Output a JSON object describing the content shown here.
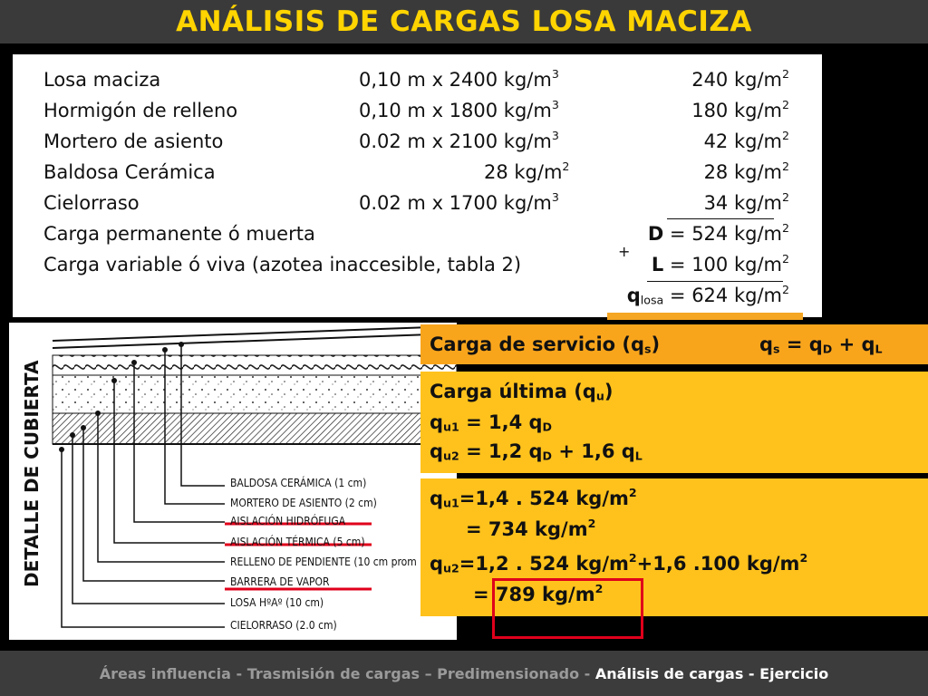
{
  "title": "ANÁLISIS DE CARGAS LOSA MACIZA",
  "loads": [
    {
      "label": "Losa maciza",
      "calc": "0,10 m x 2400 kg/m",
      "calc_sup": "3",
      "result": "240 kg/m",
      "result_sup": "2"
    },
    {
      "label": "Hormigón de relleno",
      "calc": "0,10 m x 1800 kg/m",
      "calc_sup": "3",
      "result": "180 kg/m",
      "result_sup": "2"
    },
    {
      "label": "Mortero de asiento",
      "calc": "0.02 m x 2100  kg/m",
      "calc_sup": "3",
      "result": "42 kg/m",
      "result_sup": "2"
    },
    {
      "label": "Baldosa Cerámica",
      "calc": "28   kg/m",
      "calc_sup": "2",
      "result": "28 kg/m",
      "result_sup": "2"
    },
    {
      "label": "Cielorraso",
      "calc": "0.02 m x 1700  kg/m",
      "calc_sup": "3",
      "result": "34 kg/m",
      "result_sup": "2"
    },
    {
      "label": "Carga permanente ó muerta",
      "result_prefix": "D",
      "result": " = 524 kg/m",
      "result_sup": "2"
    },
    {
      "label": "Carga variable ó viva (azotea inaccesible, tabla 2)",
      "result_prefix": "L",
      "result": " = 100 kg/m",
      "result_sup": "2"
    },
    {
      "label": "",
      "result_prefix": "q",
      "result_prefix_sub": "losa",
      "result": " = 624 kg/m",
      "result_sup": "2"
    }
  ],
  "plus_sign": "+",
  "detail": {
    "vertical_label": "DETALLE DE CUBIERTA",
    "layers": [
      "BALDOSA CERÁMICA (1 cm)",
      "MORTERO DE ASIENTO (2 cm)",
      "AISLACIÓN HIDRÓFUGA",
      "AISLACIÓN TÉRMICA (5 cm)",
      "RELLENO DE PENDIENTE (10 cm prom",
      "BARRERA DE VAPOR",
      "LOSA HºAº (10 cm)",
      "CIELORRASO (2.0 cm)"
    ]
  },
  "formulas": {
    "service_label": "Carga de servicio (q",
    "service_sub": "s",
    "service_close": ")",
    "service_eq_a": "q",
    "service_eq_a_sub": "s",
    "service_eq_b": " = q",
    "service_eq_b_sub": "D",
    "service_eq_c": " + q",
    "service_eq_c_sub": "L",
    "ultimate_label": "Carga última (q",
    "ultimate_sub": "u",
    "ultimate_close": ")",
    "qu1_a": "q",
    "qu1_sub": "u1",
    "qu1_b": " = 1,4 q",
    "qu1_sub2": "D",
    "qu2_a": "q",
    "qu2_sub": "u2",
    "qu2_b": " = 1,2 q",
    "qu2_sub2": "D",
    "qu2_c": " + 1,6 q",
    "qu2_sub3": "L",
    "calc1_a": "q",
    "calc1_sub": "u1",
    "calc1_b": "=1,4 . 524 kg/m",
    "calc1_sup": "2",
    "calc1_result": "= 734 kg/m",
    "calc1_result_sup": "2",
    "calc2_a": "q",
    "calc2_sub": "u2",
    "calc2_b": "=1,2 . 524 kg/m",
    "calc2_sup": "2",
    "calc2_c": "+1,6 .100 kg/m",
    "calc2_sup2": "2",
    "calc2_result": "= 789 kg/m",
    "calc2_result_sup": "2"
  },
  "footer": {
    "part1": "Áreas influencia - Trasmisión de cargas – Predimensionado - ",
    "active": "Análisis de cargas - Ejercicio"
  },
  "colors": {
    "title": "#ffd400",
    "box_orange": "#f9a51c",
    "box_yellow": "#ffc21c",
    "highlight": "#e0001b"
  }
}
